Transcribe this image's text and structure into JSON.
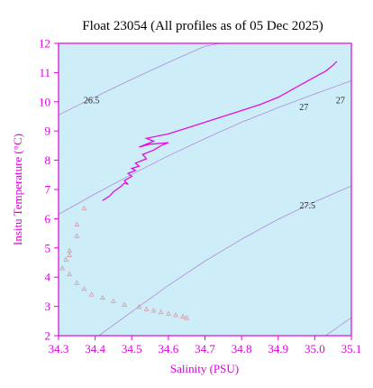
{
  "chart_data": {
    "type": "line",
    "title": "Float 23054  (All profiles as of 05 Dec 2025)",
    "xlabel": "Salinity (PSU)",
    "ylabel": "Insitu Temperature (°C)",
    "xlim": [
      34.3,
      35.1
    ],
    "ylim": [
      2,
      12
    ],
    "x_ticks": [
      "34.3",
      "34.4",
      "34.5",
      "34.6",
      "34.7",
      "34.8",
      "34.9",
      "35.0",
      "35.1"
    ],
    "y_ticks": [
      "2",
      "3",
      "4",
      "5",
      "6",
      "7",
      "8",
      "9",
      "10",
      "11",
      "12"
    ],
    "grid": false,
    "colors": {
      "plot_background": "#cdeef8",
      "axis": "#e000e0",
      "profile_line": "#e010e0",
      "profile_markers": "#d8a0b0",
      "contour": "#b08ad8"
    },
    "density_contours": [
      {
        "label": "26.5",
        "points": [
          [
            34.3,
            9.55
          ],
          [
            34.4,
            10.17
          ],
          [
            34.5,
            10.77
          ],
          [
            34.6,
            11.35
          ],
          [
            34.7,
            11.9
          ],
          [
            34.74,
            12.0
          ]
        ]
      },
      {
        "label": "27",
        "labels_extra": [
          "27"
        ],
        "points": [
          [
            34.3,
            6.15
          ],
          [
            34.4,
            6.85
          ],
          [
            34.5,
            7.52
          ],
          [
            34.6,
            8.15
          ],
          [
            34.7,
            8.74
          ],
          [
            34.8,
            9.3
          ],
          [
            34.9,
            9.8
          ],
          [
            35.0,
            10.27
          ],
          [
            35.1,
            10.72
          ]
        ]
      },
      {
        "label": "27.5",
        "points": [
          [
            34.41,
            2.0
          ],
          [
            34.5,
            2.82
          ],
          [
            34.6,
            3.72
          ],
          [
            34.7,
            4.55
          ],
          [
            34.8,
            5.3
          ],
          [
            34.9,
            5.98
          ],
          [
            35.0,
            6.58
          ],
          [
            35.1,
            7.12
          ]
        ]
      },
      {
        "label": "",
        "points": [
          [
            35.03,
            2.0
          ],
          [
            35.1,
            2.62
          ]
        ]
      }
    ],
    "contour_label_positions": [
      {
        "text": "26.5",
        "x": 34.39,
        "y": 9.95
      },
      {
        "text": "27",
        "x": 34.97,
        "y": 9.72
      },
      {
        "text": "27",
        "x": 35.07,
        "y": 9.95
      },
      {
        "text": "27.5",
        "x": 34.98,
        "y": 6.35
      }
    ],
    "series": [
      {
        "style": "line",
        "values": [
          [
            34.42,
            6.62
          ],
          [
            34.44,
            6.78
          ],
          [
            34.45,
            6.92
          ],
          [
            34.47,
            7.1
          ],
          [
            34.48,
            7.22
          ],
          [
            34.49,
            7.18
          ],
          [
            34.48,
            7.3
          ],
          [
            34.5,
            7.45
          ],
          [
            34.49,
            7.55
          ],
          [
            34.51,
            7.65
          ],
          [
            34.5,
            7.72
          ],
          [
            34.52,
            7.8
          ],
          [
            34.51,
            7.9
          ],
          [
            34.53,
            8.0
          ],
          [
            34.54,
            8.05
          ],
          [
            34.53,
            8.2
          ],
          [
            34.56,
            8.35
          ],
          [
            34.58,
            8.5
          ],
          [
            34.6,
            8.6
          ],
          [
            34.55,
            8.55
          ],
          [
            34.52,
            8.45
          ],
          [
            34.56,
            8.65
          ],
          [
            34.54,
            8.75
          ],
          [
            34.6,
            8.9
          ],
          [
            34.65,
            9.1
          ],
          [
            34.7,
            9.3
          ],
          [
            34.75,
            9.5
          ],
          [
            34.8,
            9.7
          ],
          [
            34.85,
            9.9
          ],
          [
            34.9,
            10.15
          ],
          [
            34.95,
            10.5
          ],
          [
            35.0,
            10.85
          ],
          [
            35.03,
            11.05
          ],
          [
            35.05,
            11.25
          ],
          [
            35.06,
            11.38
          ]
        ]
      },
      {
        "style": "markers",
        "values": [
          [
            34.37,
            6.35
          ],
          [
            34.35,
            5.8
          ],
          [
            34.35,
            5.4
          ],
          [
            34.33,
            4.9
          ],
          [
            34.33,
            4.75
          ],
          [
            34.32,
            4.6
          ],
          [
            34.31,
            4.3
          ],
          [
            34.33,
            4.1
          ],
          [
            34.35,
            3.8
          ],
          [
            34.37,
            3.6
          ],
          [
            34.39,
            3.4
          ],
          [
            34.42,
            3.3
          ],
          [
            34.45,
            3.18
          ],
          [
            34.48,
            3.05
          ],
          [
            34.52,
            2.98
          ],
          [
            34.54,
            2.9
          ],
          [
            34.56,
            2.85
          ],
          [
            34.58,
            2.8
          ],
          [
            34.6,
            2.75
          ],
          [
            34.62,
            2.7
          ],
          [
            34.64,
            2.65
          ],
          [
            34.65,
            2.6
          ]
        ]
      }
    ]
  }
}
